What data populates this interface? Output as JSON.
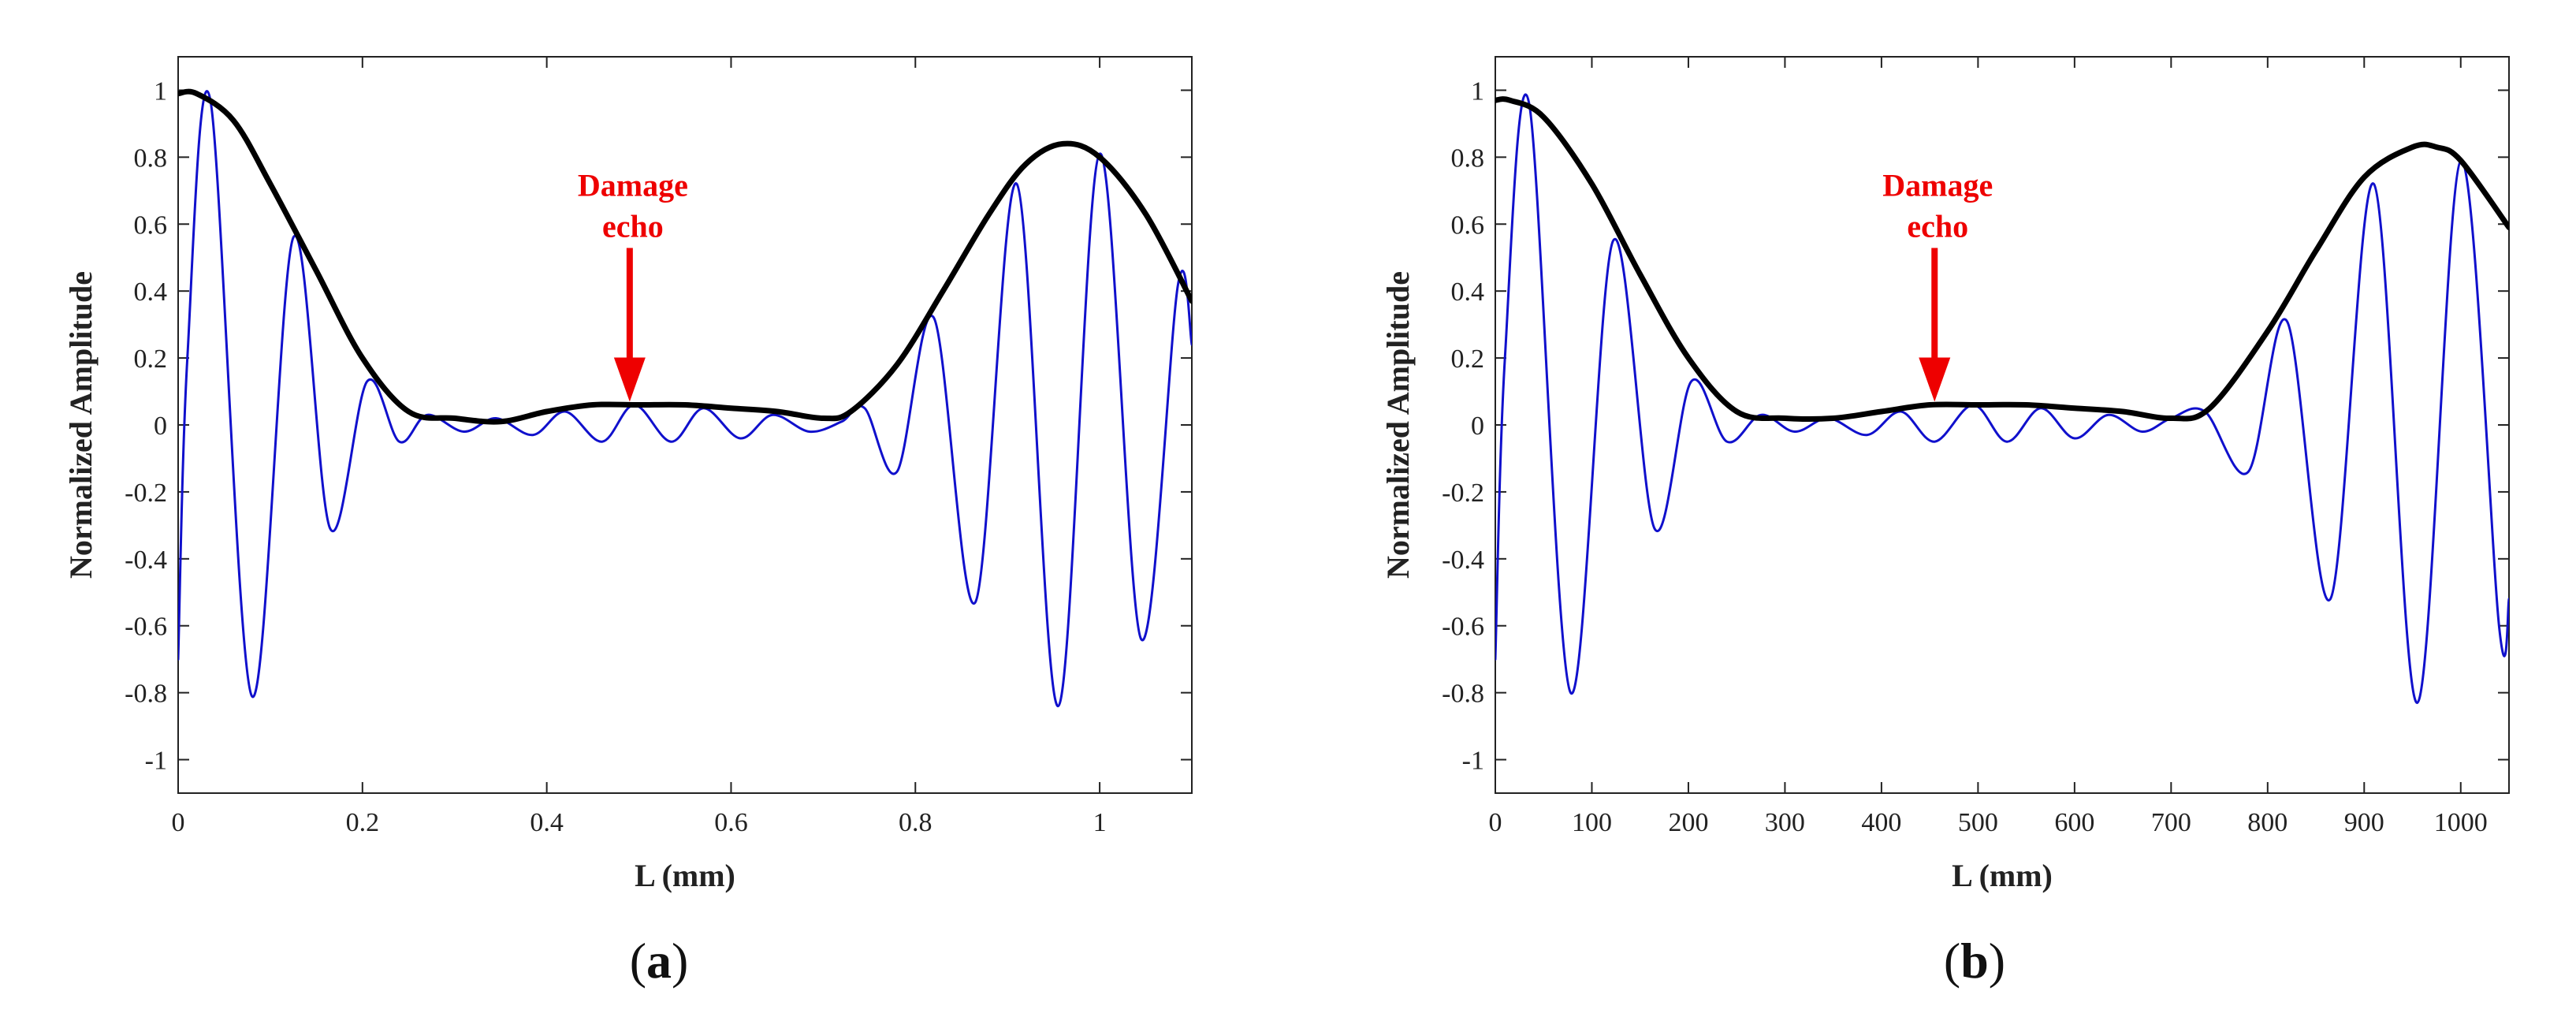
{
  "chart_data": [
    {
      "type": "line",
      "panel_label": "a",
      "xlabel": "L (mm)",
      "ylabel": "Normalized Amplitude",
      "xlim": [
        0,
        1.1
      ],
      "ylim": [
        -1.1,
        1.1
      ],
      "xticks": [
        0,
        0.2,
        0.4,
        0.6,
        0.8,
        1
      ],
      "xtick_labels": [
        "0",
        "0.2",
        "0.4",
        "0.6",
        "0.8",
        "1"
      ],
      "yticks": [
        1,
        0.8,
        0.6,
        0.4,
        0.2,
        0,
        -0.2,
        -0.4,
        -0.6,
        -0.8,
        -1
      ],
      "ytick_labels": [
        "1",
        "0.8",
        "0.6",
        "0.4",
        "0.2",
        "0",
        "-0.2",
        "-0.4",
        "-0.6",
        "-0.8",
        "-1"
      ],
      "grid": false,
      "series": [
        {
          "color": "#1010cc",
          "x": [
            0,
            0.01,
            0.035,
            0.08,
            0.125,
            0.165,
            0.205,
            0.24,
            0.27,
            0.31,
            0.345,
            0.385,
            0.42,
            0.46,
            0.495,
            0.535,
            0.57,
            0.61,
            0.645,
            0.685,
            0.72,
            0.745,
            0.78,
            0.82,
            0.865,
            0.91,
            0.955,
            1.0,
            1.045,
            1.085,
            1.1
          ],
          "y": [
            -0.7,
            0.2,
            0.97,
            -0.81,
            0.56,
            -0.31,
            0.13,
            -0.05,
            0.03,
            -0.02,
            0.02,
            -0.03,
            0.04,
            -0.05,
            0.06,
            -0.05,
            0.05,
            -0.04,
            0.03,
            -0.02,
            0.01,
            0.05,
            -0.14,
            0.32,
            -0.53,
            0.72,
            -0.84,
            0.81,
            -0.64,
            0.42,
            0.24
          ]
        },
        {
          "color": "#000000",
          "x": [
            0,
            0.02,
            0.06,
            0.1,
            0.15,
            0.2,
            0.25,
            0.3,
            0.35,
            0.4,
            0.45,
            0.5,
            0.55,
            0.6,
            0.65,
            0.7,
            0.73,
            0.78,
            0.83,
            0.88,
            0.92,
            0.96,
            1.0,
            1.05,
            1.1
          ],
          "y": [
            0.99,
            0.99,
            0.91,
            0.72,
            0.46,
            0.2,
            0.04,
            0.02,
            0.01,
            0.04,
            0.06,
            0.06,
            0.06,
            0.05,
            0.04,
            0.02,
            0.04,
            0.18,
            0.4,
            0.63,
            0.78,
            0.84,
            0.8,
            0.63,
            0.37
          ]
        }
      ],
      "annotation": {
        "text": [
          "Damage",
          "echo"
        ],
        "color": "#ee0000",
        "x": 0.49,
        "y": 0.06
      }
    },
    {
      "type": "line",
      "panel_label": "b",
      "xlabel": "L (mm)",
      "ylabel": "Normalized Amplitude",
      "xlim": [
        0,
        1050
      ],
      "ylim": [
        -1.1,
        1.1
      ],
      "xticks": [
        0,
        100,
        200,
        300,
        400,
        500,
        600,
        700,
        800,
        900,
        1000
      ],
      "xtick_labels": [
        "0",
        "100",
        "200",
        "300",
        "400",
        "500",
        "600",
        "700",
        "800",
        "900",
        "1000"
      ],
      "yticks": [
        1,
        0.8,
        0.6,
        0.4,
        0.2,
        0,
        -0.2,
        -0.4,
        -0.6,
        -0.8,
        -1
      ],
      "ytick_labels": [
        "1",
        "0.8",
        "0.6",
        "0.4",
        "0.2",
        "0",
        "-0.2",
        "-0.4",
        "-0.6",
        "-0.8",
        "-1"
      ],
      "grid": false,
      "series": [
        {
          "color": "#1010cc",
          "x": [
            0,
            10,
            35,
            78,
            122,
            165,
            203,
            240,
            275,
            310,
            345,
            385,
            420,
            455,
            495,
            530,
            565,
            600,
            635,
            670,
            700,
            735,
            780,
            820,
            865,
            910,
            955,
            1000,
            1040,
            1050
          ],
          "y": [
            -0.7,
            0.2,
            0.96,
            -0.8,
            0.55,
            -0.31,
            0.13,
            -0.05,
            0.03,
            -0.02,
            0.02,
            -0.03,
            0.04,
            -0.05,
            0.06,
            -0.05,
            0.05,
            -0.04,
            0.03,
            -0.02,
            0.02,
            0.04,
            -0.14,
            0.31,
            -0.52,
            0.72,
            -0.83,
            0.79,
            -0.61,
            -0.52
          ]
        },
        {
          "color": "#000000",
          "x": [
            0,
            15,
            50,
            100,
            150,
            200,
            250,
            300,
            350,
            400,
            450,
            500,
            550,
            600,
            650,
            700,
            740,
            800,
            850,
            900,
            950,
            975,
            1000,
            1050
          ],
          "y": [
            0.97,
            0.97,
            0.92,
            0.72,
            0.45,
            0.2,
            0.04,
            0.02,
            0.02,
            0.04,
            0.06,
            0.06,
            0.06,
            0.05,
            0.04,
            0.02,
            0.05,
            0.28,
            0.52,
            0.74,
            0.83,
            0.83,
            0.79,
            0.59
          ]
        }
      ],
      "annotation": {
        "text": [
          "Damage",
          "echo"
        ],
        "color": "#ee0000",
        "x": 455,
        "y": 0.06
      }
    }
  ],
  "captions": [
    {
      "open": "(",
      "label": "a",
      "close": ")"
    },
    {
      "open": "(",
      "label": "b",
      "close": ")"
    }
  ]
}
